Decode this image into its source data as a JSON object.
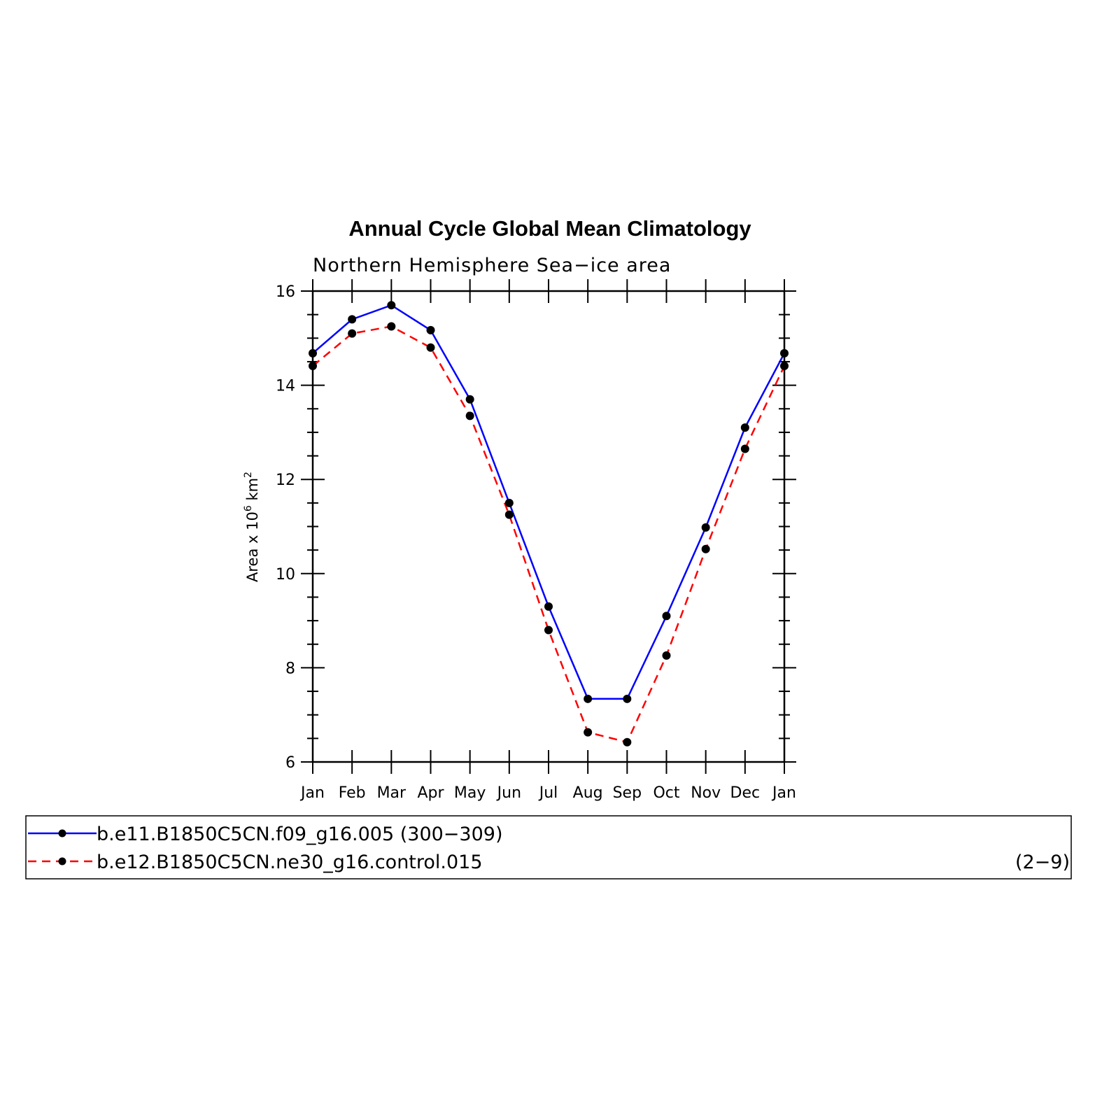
{
  "chart_data": {
    "type": "line",
    "title": "Annual Cycle Global Mean Climatology",
    "subtitle": "Northern Hemisphere Sea−ice area",
    "ylabel": {
      "prefix": "Area x 10",
      "exp1": "6",
      "unit": " km",
      "exp2": "2"
    },
    "xlabel": "",
    "categories": [
      "Jan",
      "Feb",
      "Mar",
      "Apr",
      "May",
      "Jun",
      "Jul",
      "Aug",
      "Sep",
      "Oct",
      "Nov",
      "Dec",
      "Jan"
    ],
    "ylim": [
      6,
      16
    ],
    "yticks": [
      6,
      8,
      10,
      12,
      14,
      16
    ],
    "series": [
      {
        "name": "b.e11.B1850C5CN.f09_g16.005 (300−309)",
        "color": "#0000ff",
        "dash": "solid",
        "values": [
          14.68,
          15.4,
          15.7,
          15.17,
          13.7,
          11.5,
          9.3,
          7.34,
          7.34,
          9.1,
          10.98,
          13.1,
          14.68
        ]
      },
      {
        "name": "b.e12.B1850C5CN.ne30_g16.control.015",
        "suffix": "(2−9)",
        "color": "#ff0000",
        "dash": "dashed",
        "values": [
          14.41,
          15.1,
          15.25,
          14.8,
          13.35,
          11.25,
          8.8,
          6.63,
          6.42,
          8.26,
          10.52,
          12.65,
          14.41
        ]
      }
    ],
    "marker_color": "#000000",
    "legend_position": "bottom"
  }
}
